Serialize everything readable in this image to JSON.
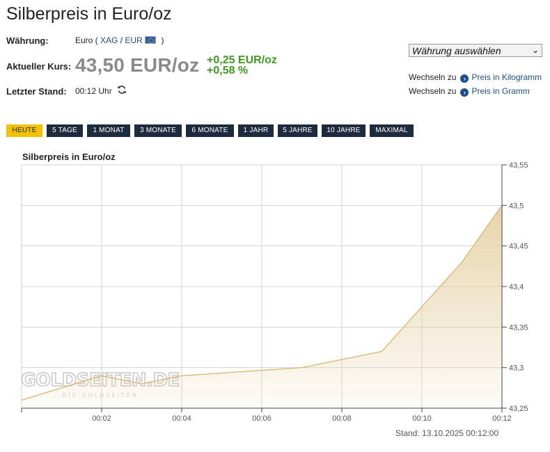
{
  "page_title": "Silberpreis in Euro/oz",
  "waehrung": {
    "label": "Währung:",
    "prefix": "Euro (",
    "xag": "XAG",
    "sep": "/",
    "eur": "EUR",
    "suffix": ")"
  },
  "kurs": {
    "label": "Aktueller Kurs:",
    "price": "43,50 EUR/oz",
    "change_abs": "+0,25 EUR/oz",
    "change_pct": "+0,58 %"
  },
  "stand": {
    "label": "Letzter Stand:",
    "time": "00:12 Uhr"
  },
  "currency_select": {
    "value": "Währung auswählen"
  },
  "switch_links": [
    {
      "prefix": "Wechseln zu",
      "link": "Preis in Kilogramm"
    },
    {
      "prefix": "Wechseln zu",
      "link": "Preis in Gramm"
    }
  ],
  "range_tabs": [
    "HEUTE",
    "5 TAGE",
    "1 MONAT",
    "3 MONATE",
    "6 MONATE",
    "1 JAHR",
    "5 JAHRE",
    "10 JAHRE",
    "MAXIMAL"
  ],
  "active_tab": "HEUTE",
  "watermark": {
    "main": "GOLDSEITEN.DE",
    "sub": "DIE GOLDSEITEN"
  },
  "footer_stand": "Stand: 13.10.2025 00:12:00",
  "colors": {
    "line": "#d8b46a",
    "fill_top": "#e6d2a6",
    "tab_bg": "#1e2a3e",
    "tab_active": "#f2c200",
    "change_positive": "#3c9a1f",
    "link": "#1f4e8c"
  },
  "chart_data": {
    "type": "area",
    "title": "Silberpreis in Euro/oz",
    "xlabel": "",
    "ylabel": "",
    "x_range": [
      "00:00",
      "00:12"
    ],
    "ylim": [
      43.25,
      43.55
    ],
    "x_ticks": [
      "00:02",
      "00:04",
      "00:06",
      "00:08",
      "00:10",
      "00:12"
    ],
    "y_ticks": [
      "43,25",
      "43,3",
      "43,35",
      "43,4",
      "43,45",
      "43,5",
      "43,55"
    ],
    "grid": true,
    "legend": "none",
    "y_axis_position": "right",
    "x": [
      "00:00",
      "00:02",
      "00:03",
      "00:04",
      "00:07",
      "00:09",
      "00:11",
      "00:12"
    ],
    "values": [
      43.26,
      43.29,
      43.28,
      43.29,
      43.3,
      43.32,
      43.43,
      43.5
    ]
  }
}
